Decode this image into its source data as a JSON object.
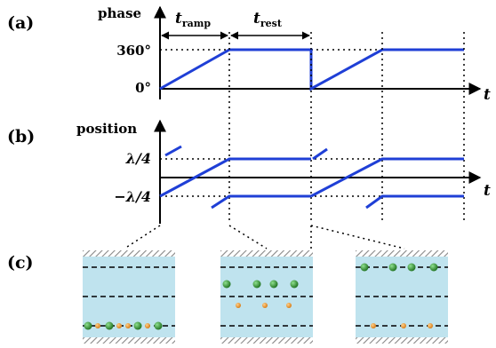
{
  "panels": {
    "a": {
      "label": "(a)",
      "y_axis": "phase",
      "ticks": {
        "top": "360°",
        "bottom": "0°"
      },
      "x_axis": "t",
      "intervals": {
        "ramp_main": "t",
        "ramp_sub": "ramp",
        "rest_main": "t",
        "rest_sub": "rest"
      }
    },
    "b": {
      "label": "(b)",
      "y_axis": "position",
      "ticks": {
        "top": "λ/4",
        "bottom": "−λ/4"
      },
      "x_axis": "t"
    },
    "c": {
      "label": "(c)",
      "insets": [
        {
          "green_atoms": 4,
          "orange_atoms": 4,
          "green_row": "bottom",
          "orange_row": "bottom"
        },
        {
          "green_atoms": 4,
          "orange_atoms": 3,
          "green_row": "middle",
          "orange_row": "between"
        },
        {
          "green_atoms": 4,
          "orange_atoms": 3,
          "green_row": "top",
          "orange_row": "bottom"
        }
      ]
    }
  },
  "colors": {
    "signal": "#1f3fd6",
    "inset_fill": "#bfe3ee",
    "green_atom": "#1b7a1b",
    "orange_atom": "#e08a1e",
    "hatch": "#888888"
  }
}
